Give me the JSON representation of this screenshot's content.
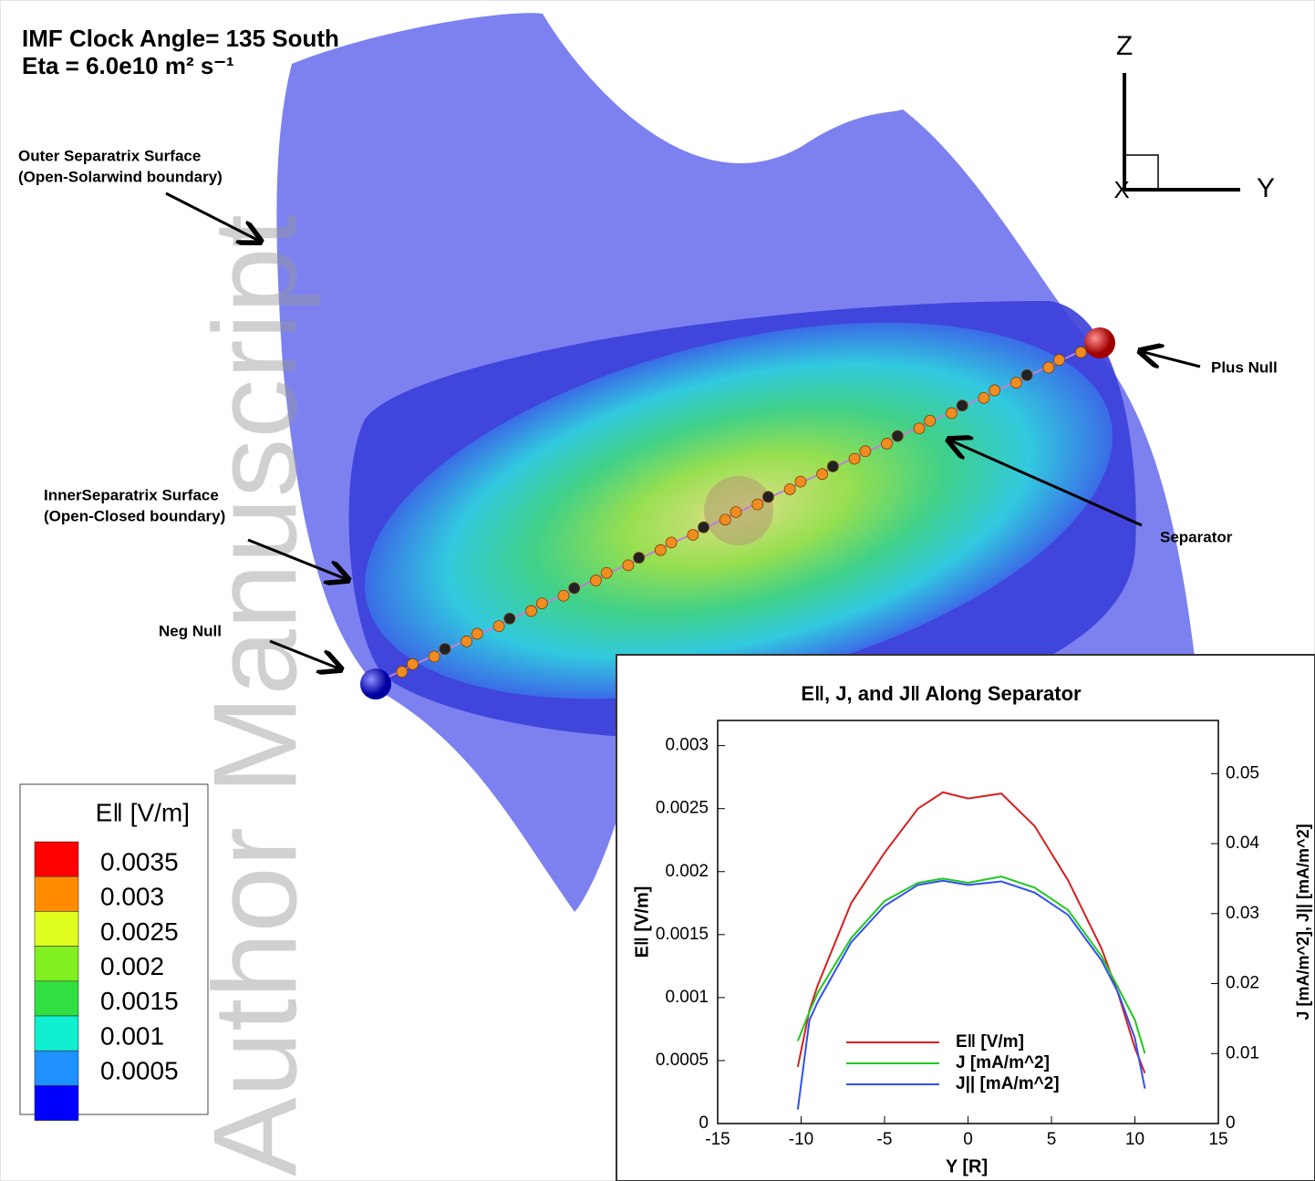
{
  "figure": {
    "title_lines": [
      "IMF Clock Angle= 135 South",
      "Eta = 6.0e10 m² s⁻¹"
    ],
    "annotations": {
      "outer": [
        "Outer Separatrix Surface",
        "(Open-Solarwind boundary)"
      ],
      "inner": [
        "InnerSeparatrix Surface",
        "(Open-Closed boundary)"
      ],
      "neg_null": "Neg Null",
      "plus_null": "Plus Null",
      "separator": "Separator"
    },
    "axes_triad": {
      "z": "Z",
      "y": "Y",
      "x": "X"
    },
    "watermark": "Author Manuscript",
    "colorbar": {
      "title": "E‖ [V/m]",
      "levels": [
        0.0035,
        0.003,
        0.0025,
        0.002,
        0.0015,
        0.001,
        0.0005
      ],
      "colors": [
        "#ff0000",
        "#ff8c00",
        "#e0ff20",
        "#80f020",
        "#30e040",
        "#10f0d0",
        "#1e90ff",
        "#0000ff"
      ]
    }
  },
  "chart_data": {
    "type": "line",
    "title": "E‖, J, and J‖ Along Separator",
    "x_label": "Y [R]",
    "y_label": "E‖ [V/m]",
    "y2_label": "J [mA/m^2], J|| [mA/m^2]",
    "x": [
      -10.2,
      -9.5,
      -9,
      -7,
      -5,
      -3,
      -1.5,
      0,
      2,
      4,
      6,
      8,
      9,
      10,
      10.6
    ],
    "xlim": [
      -15,
      15
    ],
    "xticks": [
      -15,
      -10,
      -5,
      0,
      5,
      10,
      15
    ],
    "ylim": [
      0,
      0.0032
    ],
    "yticks": [
      0,
      0.0005,
      0.001,
      0.0015,
      0.002,
      0.0025,
      0.003
    ],
    "y2lim": [
      0,
      0.0576
    ],
    "y2ticks": [
      0,
      0.01,
      0.02,
      0.03,
      0.04,
      0.05
    ],
    "series": [
      {
        "name": "E‖ [V/m]",
        "color": "#d62020",
        "values": [
          0.00045,
          0.0009,
          0.0011,
          0.00175,
          0.00215,
          0.0025,
          0.00263,
          0.00258,
          0.00262,
          0.00236,
          0.00193,
          0.00139,
          0.00103,
          0.0006,
          0.0004
        ]
      },
      {
        "name": "J [mA/m^2]",
        "color": "#20c820",
        "axis": "y2",
        "values": [
          0.0118,
          0.016,
          0.0187,
          0.0265,
          0.0318,
          0.0344,
          0.035,
          0.0344,
          0.0353,
          0.0337,
          0.0305,
          0.0239,
          0.0194,
          0.0148,
          0.01
        ]
      },
      {
        "name": "J|| [mA/m^2]",
        "color": "#3050f0",
        "axis": "y2",
        "values": [
          0.002,
          0.0148,
          0.0174,
          0.0259,
          0.0311,
          0.0341,
          0.0347,
          0.0341,
          0.0346,
          0.033,
          0.0298,
          0.0233,
          0.0187,
          0.0122,
          0.005
        ]
      }
    ]
  }
}
